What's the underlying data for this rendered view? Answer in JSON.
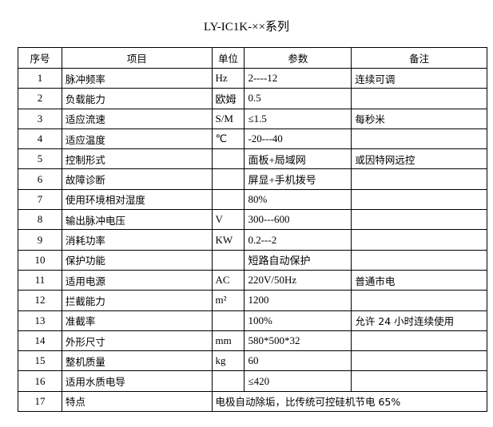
{
  "title": "LY-IC1K-××系列",
  "headers": [
    "序号",
    "项目",
    "单位",
    "参数",
    "备注"
  ],
  "rows": [
    {
      "no": "1",
      "item": "脉冲频率",
      "unit": "Hz",
      "param": "2----12",
      "note": "连续可调"
    },
    {
      "no": "2",
      "item": "负载能力",
      "unit": "欧姆",
      "param": "0.5",
      "note": ""
    },
    {
      "no": "3",
      "item": "适应流速",
      "unit": "S/M",
      "param": "≤1.5",
      "note": "每秒米"
    },
    {
      "no": "4",
      "item": "适应温度",
      "unit": "℃",
      "param": "-20---40",
      "note": ""
    },
    {
      "no": "5",
      "item": "控制形式",
      "unit": "",
      "param": "面板+局域网",
      "note": "或因特网远控"
    },
    {
      "no": "6",
      "item": "故障诊断",
      "unit": "",
      "param": "屏显+手机拨号",
      "note": ""
    },
    {
      "no": "7",
      "item": "使用环境相对湿度",
      "unit": "",
      "param": "80%",
      "note": ""
    },
    {
      "no": "8",
      "item": "输出脉冲电压",
      "unit": "V",
      "param": "300---600",
      "note": ""
    },
    {
      "no": "9",
      "item": "消耗功率",
      "unit": "KW",
      "param": "0.2---2",
      "note": ""
    },
    {
      "no": "10",
      "item": "保护功能",
      "unit": "",
      "param": "短路自动保护",
      "note": ""
    },
    {
      "no": "11",
      "item": "适用电源",
      "unit": "AC",
      "param": "220V/50Hz",
      "note": "普通市电"
    },
    {
      "no": "12",
      "item": "拦截能力",
      "unit": "m²",
      "param": "1200",
      "note": ""
    },
    {
      "no": "13",
      "item": "准截率",
      "unit": "",
      "param": "100%",
      "note": "允许 24 小时连续使用"
    },
    {
      "no": "14",
      "item": "外形尺寸",
      "unit": "mm",
      "param": "580*500*32",
      "note": ""
    },
    {
      "no": "15",
      "item": "整机质量",
      "unit": "kg",
      "param": "60",
      "note": ""
    },
    {
      "no": "16",
      "item": "适用水质电导",
      "unit": "",
      "param": "≤420",
      "note": ""
    }
  ],
  "last_row": {
    "no": "17",
    "item": "特点",
    "value": "电极自动除垢，比传统可控硅机节电 65%"
  }
}
